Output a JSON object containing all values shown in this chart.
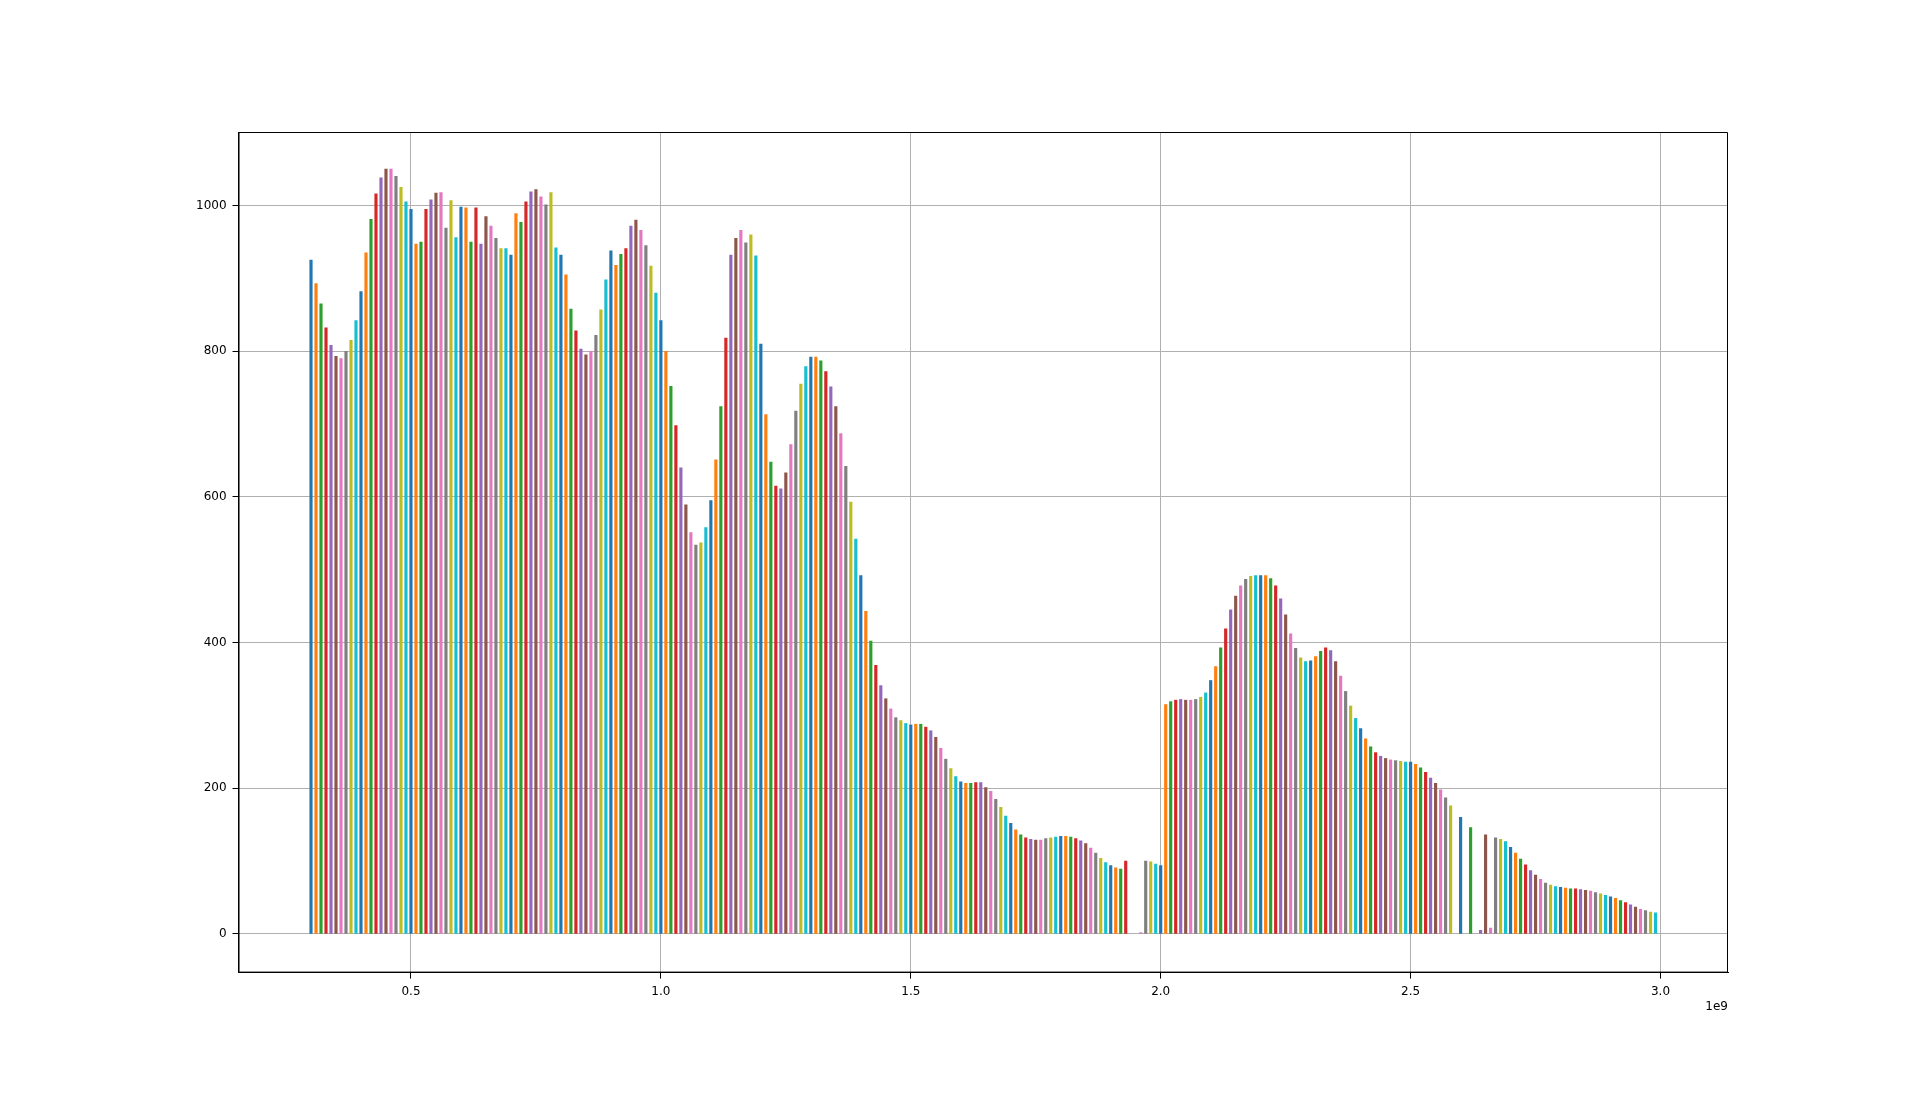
{
  "chart_data": {
    "type": "bar",
    "xlim": [
      0.155,
      3.135
    ],
    "ylim": [
      -53,
      1101
    ],
    "xticks": [
      0.5,
      {
        "value": 1,
        "label": "1.0"
      },
      1.5,
      {
        "value": 2,
        "label": "2.0"
      },
      2.5,
      {
        "value": 3,
        "label": "3.0"
      }
    ],
    "yticks": [
      0,
      200,
      400,
      600,
      800,
      1000
    ],
    "grid": true,
    "legend": false,
    "annotations": [
      "1e9"
    ],
    "series": [
      {
        "color": "#1f77b4",
        "x": [
          0.3,
          0.4,
          0.5,
          0.6,
          0.7,
          0.8,
          0.9,
          1.0,
          1.1,
          1.2,
          1.3,
          1.4,
          1.5,
          1.6,
          1.7,
          1.8,
          1.9,
          2.0,
          2.1,
          2.2,
          2.3,
          2.4,
          2.5,
          2.6,
          2.7,
          2.8,
          2.9
        ],
        "values": [
          925,
          882,
          995,
          998,
          932,
          932,
          938,
          842,
          595,
          810,
          792,
          492,
          287,
          209,
          152,
          134,
          94,
          94,
          348,
          492,
          375,
          282,
          236,
          160,
          119,
          64,
          51
        ]
      },
      {
        "color": "#ff7f0e",
        "x": [
          0.31,
          0.41,
          0.51,
          0.61,
          0.71,
          0.81,
          0.91,
          1.01,
          1.11,
          1.21,
          1.31,
          1.41,
          1.51,
          1.61,
          1.71,
          1.81,
          1.91,
          2.01,
          2.11,
          2.21,
          2.31,
          2.41,
          2.51,
          2.61,
          2.71,
          2.81,
          2.91
        ],
        "values": [
          893,
          935,
          947,
          997,
          989,
          905,
          918,
          800,
          651,
          713,
          792,
          443,
          288,
          207,
          143,
          134,
          91,
          315,
          367,
          492,
          381,
          268,
          233,
          null,
          111,
          63,
          49
        ]
      },
      {
        "color": "#2ca02c",
        "x": [
          0.32,
          0.42,
          0.52,
          0.62,
          0.72,
          0.82,
          0.92,
          1.02,
          1.12,
          1.22,
          1.32,
          1.42,
          1.52,
          1.62,
          1.72,
          1.82,
          1.92,
          2.02,
          2.12,
          2.22,
          2.32,
          2.42,
          2.52,
          2.62,
          2.72,
          2.82,
          2.92
        ],
        "values": [
          865,
          981,
          950,
          950,
          977,
          858,
          933,
          752,
          724,
          648,
          787,
          402,
          288,
          207,
          136,
          133,
          89,
          319,
          393,
          488,
          388,
          257,
          228,
          146,
          103,
          62,
          46
        ]
      },
      {
        "color": "#d62728",
        "x": [
          0.33,
          0.43,
          0.53,
          0.63,
          0.73,
          0.83,
          0.93,
          1.03,
          1.13,
          1.23,
          1.33,
          1.43,
          1.53,
          1.63,
          1.73,
          1.83,
          1.93,
          2.03,
          2.13,
          2.23,
          2.33,
          2.43,
          2.53,
          2.63,
          2.73,
          2.83,
          2.93
        ],
        "values": [
          832,
          1016,
          995,
          997,
          1005,
          828,
          941,
          698,
          818,
          615,
          772,
          369,
          284,
          208,
          132,
          131,
          100,
          321,
          419,
          478,
          393,
          249,
          222,
          null,
          95,
          62,
          43
        ]
      },
      {
        "color": "#9467bd",
        "x": [
          0.34,
          0.44,
          0.54,
          0.64,
          0.74,
          0.84,
          0.94,
          1.04,
          1.14,
          1.24,
          1.34,
          1.44,
          1.54,
          1.64,
          1.74,
          1.84,
          1.94,
          2.04,
          2.14,
          2.24,
          2.34,
          2.44,
          2.54,
          2.64,
          2.74,
          2.84,
          2.94
        ],
        "values": [
          808,
          1038,
          1008,
          947,
          1019,
          803,
          972,
          640,
          932,
          611,
          751,
          341,
          279,
          208,
          130,
          128,
          null,
          322,
          445,
          460,
          389,
          244,
          214,
          5,
          87,
          61,
          40
        ]
      },
      {
        "color": "#8c564b",
        "x": [
          0.35,
          0.45,
          0.55,
          0.65,
          0.75,
          0.85,
          0.95,
          1.05,
          1.15,
          1.25,
          1.35,
          1.45,
          1.55,
          1.65,
          1.75,
          1.85,
          1.95,
          2.05,
          2.15,
          2.25,
          2.35,
          2.45,
          2.55,
          2.65,
          2.75,
          2.85,
          2.95
        ],
        "values": [
          793,
          1050,
          1017,
          985,
          1022,
          795,
          980,
          589,
          955,
          633,
          724,
          323,
          270,
          201,
          129,
          124,
          null,
          321,
          464,
          438,
          374,
          241,
          207,
          136,
          81,
          60,
          37
        ]
      },
      {
        "color": "#e377c2",
        "x": [
          0.36,
          0.46,
          0.56,
          0.66,
          0.76,
          0.86,
          0.96,
          1.06,
          1.16,
          1.26,
          1.36,
          1.46,
          1.56,
          1.66,
          1.76,
          1.86,
          1.96,
          2.06,
          2.16,
          2.26,
          2.36,
          2.46,
          2.56,
          2.66,
          2.76,
          2.86,
          2.96
        ],
        "values": [
          790,
          1050,
          1018,
          972,
          1012,
          800,
          966,
          551,
          966,
          672,
          687,
          309,
          255,
          196,
          129,
          118,
          2,
          321,
          478,
          412,
          354,
          239,
          198,
          8,
          75,
          59,
          34
        ]
      },
      {
        "color": "#7f7f7f",
        "x": [
          0.37,
          0.47,
          0.57,
          0.67,
          0.77,
          0.87,
          0.97,
          1.07,
          1.17,
          1.27,
          1.37,
          1.47,
          1.57,
          1.67,
          1.77,
          1.87,
          1.97,
          2.07,
          2.17,
          2.27,
          2.37,
          2.47,
          2.57,
          2.67,
          2.77,
          2.87,
          2.97
        ],
        "values": [
          800,
          1040,
          969,
          955,
          1001,
          822,
          945,
          534,
          949,
          718,
          642,
          297,
          240,
          185,
          131,
          111,
          100,
          322,
          487,
          392,
          333,
          238,
          187,
          132,
          70,
          57,
          32
        ]
      },
      {
        "color": "#bcbd22",
        "x": [
          0.38,
          0.48,
          0.58,
          0.68,
          0.78,
          0.88,
          0.98,
          1.08,
          1.18,
          1.28,
          1.38,
          1.48,
          1.58,
          1.68,
          1.78,
          1.88,
          1.98,
          2.08,
          2.18,
          2.28,
          2.38,
          2.48,
          2.58,
          2.68,
          2.78,
          2.88,
          2.98
        ],
        "values": [
          815,
          1025,
          1007,
          941,
          1018,
          857,
          917,
          537,
          960,
          755,
          593,
          293,
          227,
          174,
          132,
          104,
          99,
          325,
          491,
          379,
          313,
          237,
          176,
          130,
          67,
          55,
          30
        ]
      },
      {
        "color": "#17becf",
        "x": [
          0.39,
          0.49,
          0.59,
          0.69,
          0.79,
          0.89,
          0.99,
          1.09,
          1.19,
          1.29,
          1.39,
          1.49,
          1.59,
          1.69,
          1.79,
          1.89,
          1.99,
          2.09,
          2.19,
          2.29,
          2.39,
          2.49,
          2.59,
          2.69,
          2.79,
          2.89,
          2.99
        ],
        "values": [
          842,
          1005,
          956,
          941,
          942,
          898,
          880,
          558,
          931,
          779,
          542,
          289,
          216,
          162,
          133,
          98,
          96,
          331,
          492,
          374,
          296,
          236,
          null,
          127,
          65,
          53,
          29
        ]
      }
    ]
  }
}
